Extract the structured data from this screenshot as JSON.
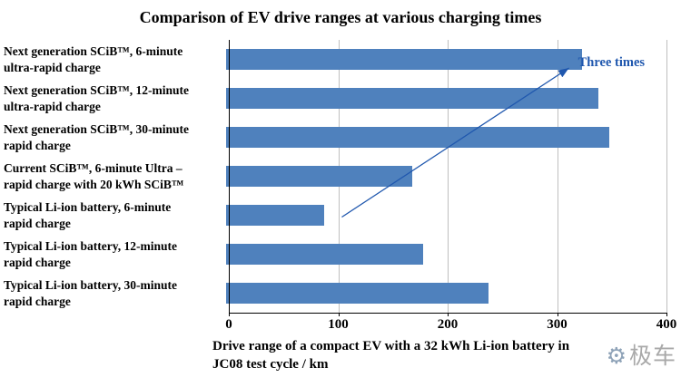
{
  "chart_data": {
    "type": "bar",
    "orientation": "horizontal",
    "title": "Comparison of EV drive ranges at various charging times",
    "categories": [
      {
        "line1": "Next generation SCiB™, 6-minute",
        "line2": "ultra-rapid charge"
      },
      {
        "line1": "Next generation SCiB™, 12-minute",
        "line2": "ultra-rapid charge"
      },
      {
        "line1": "Next generation SCiB™, 30-minute",
        "line2": "rapid charge"
      },
      {
        "line1": "Current SCiB™, 6-minute Ultra –",
        "line2": "rapid charge with 20 kWh SCiB™"
      },
      {
        "line1": "Typical Li-ion battery, 6-minute",
        "line2": "rapid charge"
      },
      {
        "line1": "Typical Li-ion battery, 12-minute",
        "line2": "rapid charge"
      },
      {
        "line1": "Typical Li-ion battery, 30-minute",
        "line2": "rapid charge"
      }
    ],
    "values": [
      325,
      340,
      350,
      170,
      90,
      180,
      240
    ],
    "xlim": [
      0,
      400
    ],
    "xticks": [
      0,
      100,
      200,
      300,
      400
    ],
    "xlabel_line1": "Drive range of a compact EV with a 32 kWh Li-ion battery in",
    "xlabel_line2": "JC08 test cycle / km",
    "bar_color": "#4F81BD",
    "grid_color": "#bfbfbf",
    "axis_color": "#000000",
    "legend": "none",
    "grid": "vertical",
    "annotation": {
      "text": "Three times",
      "color": "#1F57AE"
    }
  },
  "watermark": {
    "icon": "⚙",
    "text": "极车"
  }
}
